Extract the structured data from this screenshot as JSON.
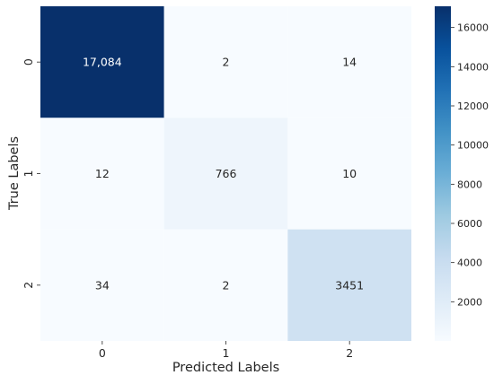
{
  "chart_data": {
    "type": "heatmap",
    "title": "",
    "xlabel": "Predicted Labels",
    "ylabel": "True Labels",
    "x_categories": [
      "0",
      "1",
      "2"
    ],
    "y_categories": [
      "0",
      "1",
      "2"
    ],
    "matrix": [
      [
        17084,
        2,
        14
      ],
      [
        12,
        766,
        10
      ],
      [
        34,
        2,
        3451
      ]
    ],
    "cell_labels": [
      [
        "17,084",
        "2",
        "14"
      ],
      [
        "12",
        "766",
        "10"
      ],
      [
        "34",
        "2",
        "3451"
      ]
    ],
    "colorscale": "Blues",
    "color_range": [
      0,
      17084
    ],
    "colorbar": {
      "ticks": [
        2000,
        4000,
        6000,
        8000,
        10000,
        12000,
        14000,
        16000
      ],
      "tick_labels": [
        "2000",
        "4000",
        "6000",
        "8000",
        "10000",
        "12000",
        "14000",
        "16000"
      ]
    },
    "grid": false,
    "legend": "colorbar-right"
  }
}
